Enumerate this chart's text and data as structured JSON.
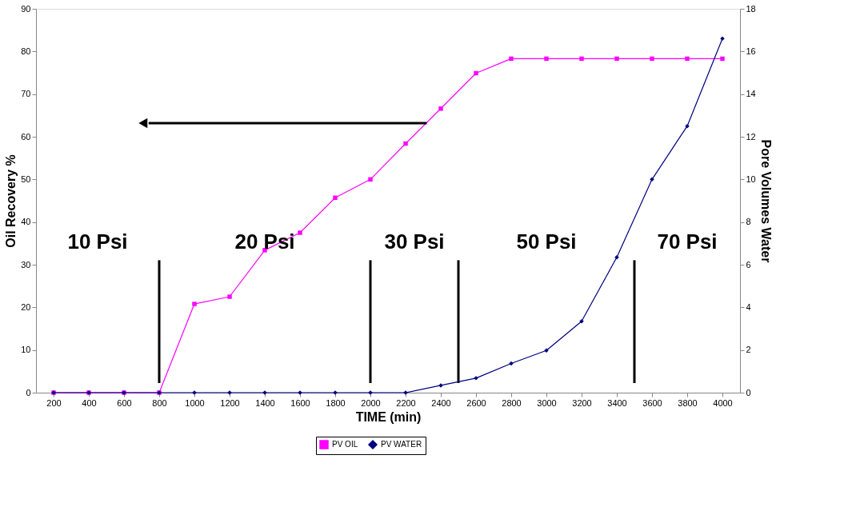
{
  "chart_data": {
    "type": "line",
    "xlabel": "TIME (min)",
    "ylabel": "Oil Recovery %",
    "y2label": "Pore Volumes Water",
    "x": [
      200,
      400,
      600,
      800,
      1000,
      1200,
      1400,
      1600,
      1800,
      2000,
      2200,
      2400,
      2600,
      2800,
      3000,
      3200,
      3400,
      3600,
      3800,
      4000
    ],
    "xlim": [
      100,
      4100
    ],
    "xticks": [
      200,
      400,
      600,
      800,
      1000,
      1200,
      1400,
      1600,
      1800,
      2000,
      2200,
      2400,
      2600,
      2800,
      3000,
      3200,
      3400,
      3600,
      3800,
      4000
    ],
    "ylim": [
      0,
      90
    ],
    "yticks": [
      0,
      10,
      20,
      30,
      40,
      50,
      60,
      70,
      80,
      90
    ],
    "y2lim": [
      0,
      18
    ],
    "y2ticks": [
      0,
      2,
      4,
      6,
      8,
      10,
      12,
      14,
      16,
      18
    ],
    "grid": false,
    "legend": "bottom",
    "line_style": "solid",
    "series": [
      {
        "name": "PV OIL",
        "color": "#ff00ff",
        "marker": "square",
        "values": [
          0,
          0,
          0,
          0,
          20.8,
          22.5,
          33.4,
          37.5,
          45.7,
          50,
          58.4,
          66.6,
          74.9,
          78.3,
          78.3,
          78.3,
          78.3,
          78.3,
          78.3,
          78.3
        ]
      },
      {
        "name": "PV WATER",
        "color": "#000080",
        "marker": "diamond",
        "axis": "y2",
        "values": [
          0,
          0,
          0,
          0,
          0,
          0,
          0,
          0,
          0,
          0,
          0,
          0.34,
          0.68,
          1.37,
          1.98,
          3.35,
          6.35,
          10,
          12.5,
          16.6
        ]
      }
    ],
    "ref_lines": [
      {
        "axis": "x",
        "value": 800,
        "color": "#000000"
      },
      {
        "axis": "x",
        "value": 2000,
        "color": "#000000"
      },
      {
        "axis": "x",
        "value": 2500,
        "color": "#000000"
      },
      {
        "axis": "x",
        "value": 3500,
        "color": "#000000"
      }
    ],
    "annotations": [
      "10 Psi",
      "20 Psi",
      "30 Psi",
      "50 Psi",
      "70 Psi"
    ]
  }
}
